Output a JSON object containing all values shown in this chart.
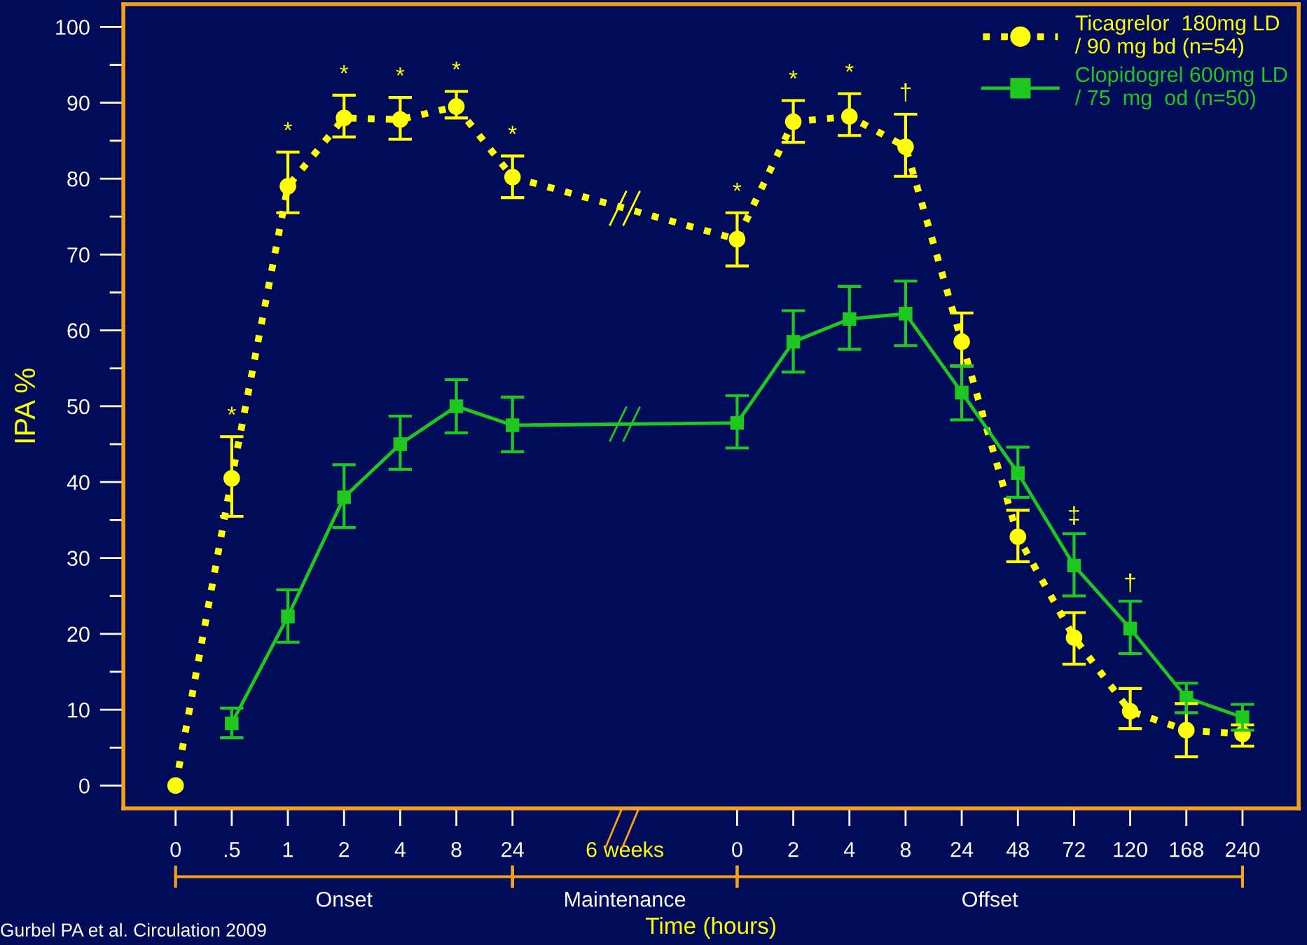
{
  "chart_data": {
    "type": "line",
    "xlabel": "Time (hours)",
    "ylabel": "IPA %",
    "categories": [
      "0",
      ".5",
      "1",
      "2",
      "4",
      "8",
      "24",
      null,
      "6 weeks",
      null,
      "0",
      "2",
      "4",
      "8",
      "24",
      "48",
      "72",
      "120",
      "168",
      "240"
    ],
    "series": [
      {
        "name": "Ticagrelor  180mg LD\n/ 90 mg bd (n=54)",
        "color": "#ffff00",
        "marker": "circle",
        "line_style": "dotted",
        "values": [
          0,
          40.5,
          79,
          88,
          87.8,
          89.5,
          80.2,
          null,
          null,
          null,
          72,
          87.5,
          88.2,
          84.2,
          58.5,
          32.8,
          19.5,
          9.8,
          7.3,
          6.8
        ],
        "errors": [
          null,
          [
            35.5,
            46
          ],
          [
            75.5,
            83.5
          ],
          [
            85.5,
            91
          ],
          [
            85.2,
            90.7
          ],
          [
            88,
            91.5
          ],
          [
            77.5,
            83
          ],
          null,
          null,
          null,
          [
            68.5,
            75.5
          ],
          [
            84.8,
            90.3
          ],
          [
            85.7,
            91.2
          ],
          [
            80.3,
            88.5
          ],
          [
            55.3,
            62.3
          ],
          [
            29.5,
            36.3
          ],
          [
            16,
            22.8
          ],
          [
            7.5,
            12.8
          ],
          [
            3.8,
            10.8
          ],
          [
            5.2,
            8
          ]
        ],
        "value_labels": [
          null,
          "*",
          "*",
          "*",
          "*",
          "*",
          "*",
          null,
          null,
          null,
          "*",
          "*",
          "*",
          "†",
          null,
          null,
          null,
          null,
          null,
          null
        ]
      },
      {
        "name": "Clopidogrel 600mg LD\n/ 75  mg  od (n=50)",
        "color": "#1ec81e",
        "marker": "square",
        "line_style": "solid",
        "values": [
          null,
          8.2,
          22.3,
          38,
          45,
          50,
          47.5,
          null,
          null,
          null,
          47.8,
          58.5,
          61.5,
          62.2,
          51.8,
          41.2,
          29,
          20.7,
          11.6,
          9
        ],
        "errors": [
          null,
          [
            6.3,
            10.2
          ],
          [
            18.9,
            25.8
          ],
          [
            34,
            42.3
          ],
          [
            41.7,
            48.7
          ],
          [
            46.5,
            53.5
          ],
          [
            44,
            51.2
          ],
          null,
          null,
          null,
          [
            44.5,
            51.4
          ],
          [
            54.5,
            62.6
          ],
          [
            57.5,
            65.8
          ],
          [
            58,
            66.5
          ],
          [
            48.2,
            55.3
          ],
          [
            38,
            44.6
          ],
          [
            25,
            33.2
          ],
          [
            17.4,
            24.3
          ],
          [
            9.6,
            13.5
          ],
          [
            7.3,
            10.7
          ]
        ]
      }
    ],
    "ylim": [
      -3,
      103
    ],
    "yticks": [
      0,
      10,
      20,
      30,
      40,
      50,
      60,
      70,
      80,
      90,
      100
    ],
    "grid": false,
    "legend": "top right",
    "annotations": [
      "Onset",
      "Maintenance",
      "Offset",
      "Gurbel PA et al. Circulation 2009",
      {
        "text": "‡",
        "x": "72",
        "y": 33.2
      },
      {
        "text": "†",
        "x": "120",
        "y": 24.3
      }
    ]
  }
}
